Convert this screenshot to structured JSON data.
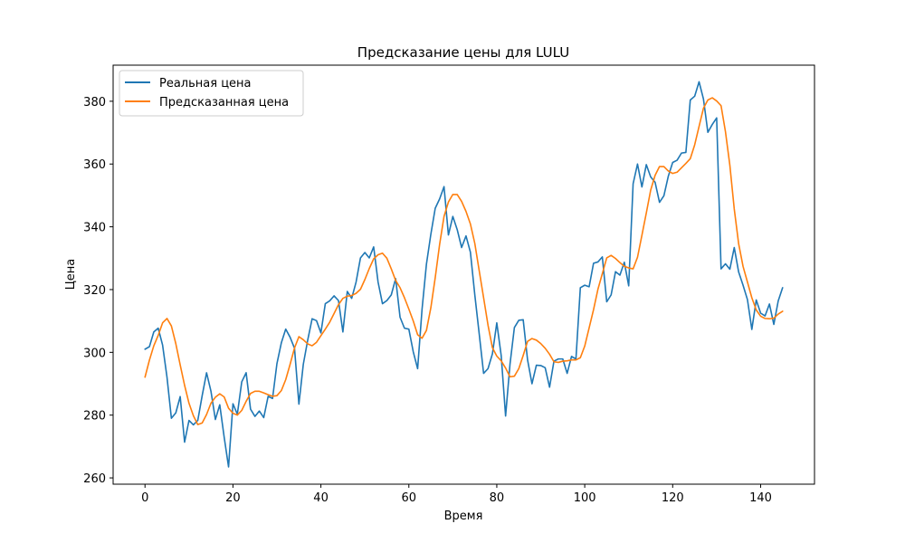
{
  "chart_data": {
    "type": "line",
    "title": "Предсказание цены для LULU",
    "xlabel": "Время",
    "ylabel": "Цена",
    "xlim": [
      -7.25,
      152.25
    ],
    "ylim": [
      258,
      391.5
    ],
    "xticks": [
      0,
      20,
      40,
      60,
      80,
      100,
      120,
      140
    ],
    "yticks": [
      260,
      280,
      300,
      320,
      340,
      360,
      380
    ],
    "grid": false,
    "legend_position": "top-left",
    "series": [
      {
        "name": "Реальная цена",
        "color": "#1f77b4",
        "values": [
          301,
          301.8,
          306.5,
          307.7,
          302.3,
          292.1,
          279,
          280.7,
          285.9,
          271.4,
          278.3,
          276.9,
          278.3,
          286.2,
          293.5,
          287.6,
          278.6,
          283.3,
          273,
          263.5,
          283.6,
          280.3,
          290.6,
          293.5,
          281.9,
          279.6,
          281.3,
          279.2,
          286,
          285.3,
          296.4,
          303,
          307.4,
          304.8,
          301.3,
          283.5,
          296.2,
          303.9,
          310.7,
          310.1,
          306.2,
          315.5,
          316.4,
          318,
          316.5,
          306.5,
          319.4,
          317.2,
          322.4,
          330.1,
          331.8,
          330.1,
          333.6,
          322.4,
          315.5,
          316.5,
          318.3,
          323.5,
          311.2,
          307.7,
          307.4,
          300.2,
          294.8,
          313.7,
          328.1,
          337.6,
          345.9,
          348.9,
          352.8,
          337.4,
          343.3,
          339.1,
          333.4,
          337.1,
          331.9,
          318.3,
          305.9,
          293.3,
          294.8,
          299.5,
          309.4,
          299,
          279.7,
          296.2,
          307.9,
          310.2,
          310.4,
          297.6,
          290,
          295.9,
          295.8,
          295.1,
          288.9,
          297.2,
          297.9,
          297.9,
          293.3,
          298.7,
          297.9,
          320.6,
          321.4,
          320.9,
          328.4,
          328.8,
          330.4,
          316.1,
          318.3,
          325.7,
          324.6,
          328.7,
          321.2,
          353.7,
          360,
          352.7,
          359.8,
          355.9,
          354.2,
          347.8,
          349.9,
          356.1,
          360.5,
          361.2,
          363.5,
          363.7,
          380.4,
          381.6,
          386.2,
          380.7,
          370.1,
          372.6,
          374.7,
          326.6,
          328.2,
          326.5,
          333.4,
          325.6,
          321.4,
          316.8,
          307.3,
          316.7,
          312.5,
          311.6,
          315.4,
          308.9,
          316.4,
          320.6
        ]
      },
      {
        "name": "Предсказанная цена",
        "color": "#ff7f0e",
        "values": [
          292.1,
          297.5,
          302.1,
          305.4,
          309.4,
          310.8,
          308.4,
          302.8,
          296,
          289.5,
          283.8,
          279.8,
          277,
          277.5,
          280.2,
          283.8,
          285.7,
          286.8,
          285.8,
          282.2,
          280.6,
          280,
          281.5,
          284.4,
          286.9,
          287.6,
          287.6,
          287.1,
          286.5,
          286,
          286.2,
          287.8,
          291.3,
          296.2,
          301.4,
          305,
          304,
          302.7,
          302.1,
          303.2,
          305.3,
          307.4,
          309.6,
          312.4,
          315.2,
          317.2,
          317.9,
          318.1,
          318.8,
          320.1,
          323.2,
          326.7,
          329.8,
          331.1,
          331.6,
          330,
          326.6,
          322.9,
          320.6,
          317.4,
          313.8,
          310,
          305.6,
          304.5,
          307,
          314.2,
          323.8,
          334.4,
          343.3,
          347.9,
          350.3,
          350.3,
          348.1,
          344.9,
          340.9,
          334.7,
          326,
          317.4,
          308.7,
          301.5,
          298.8,
          297.3,
          295,
          292.2,
          292.4,
          294.8,
          299,
          303.5,
          304.4,
          303.9,
          302.8,
          301.3,
          299.4,
          297,
          296.8,
          297.2,
          297.3,
          297.6,
          297.6,
          298.3,
          302,
          307.8,
          313.6,
          320.1,
          325.1,
          330.1,
          330.9,
          329.9,
          328.6,
          327.4,
          326.9,
          326.6,
          330.3,
          337.3,
          344.4,
          351.7,
          356.4,
          359.2,
          359.2,
          357.8,
          357,
          357.4,
          358.8,
          360.2,
          361.7,
          366.1,
          372,
          377.8,
          380.4,
          381.1,
          380.1,
          378.6,
          370.3,
          359.6,
          345.7,
          334.6,
          327.4,
          322.4,
          317.4,
          313.5,
          311.5,
          310.8,
          310.7,
          310.9,
          312.2,
          313.1
        ]
      }
    ]
  }
}
